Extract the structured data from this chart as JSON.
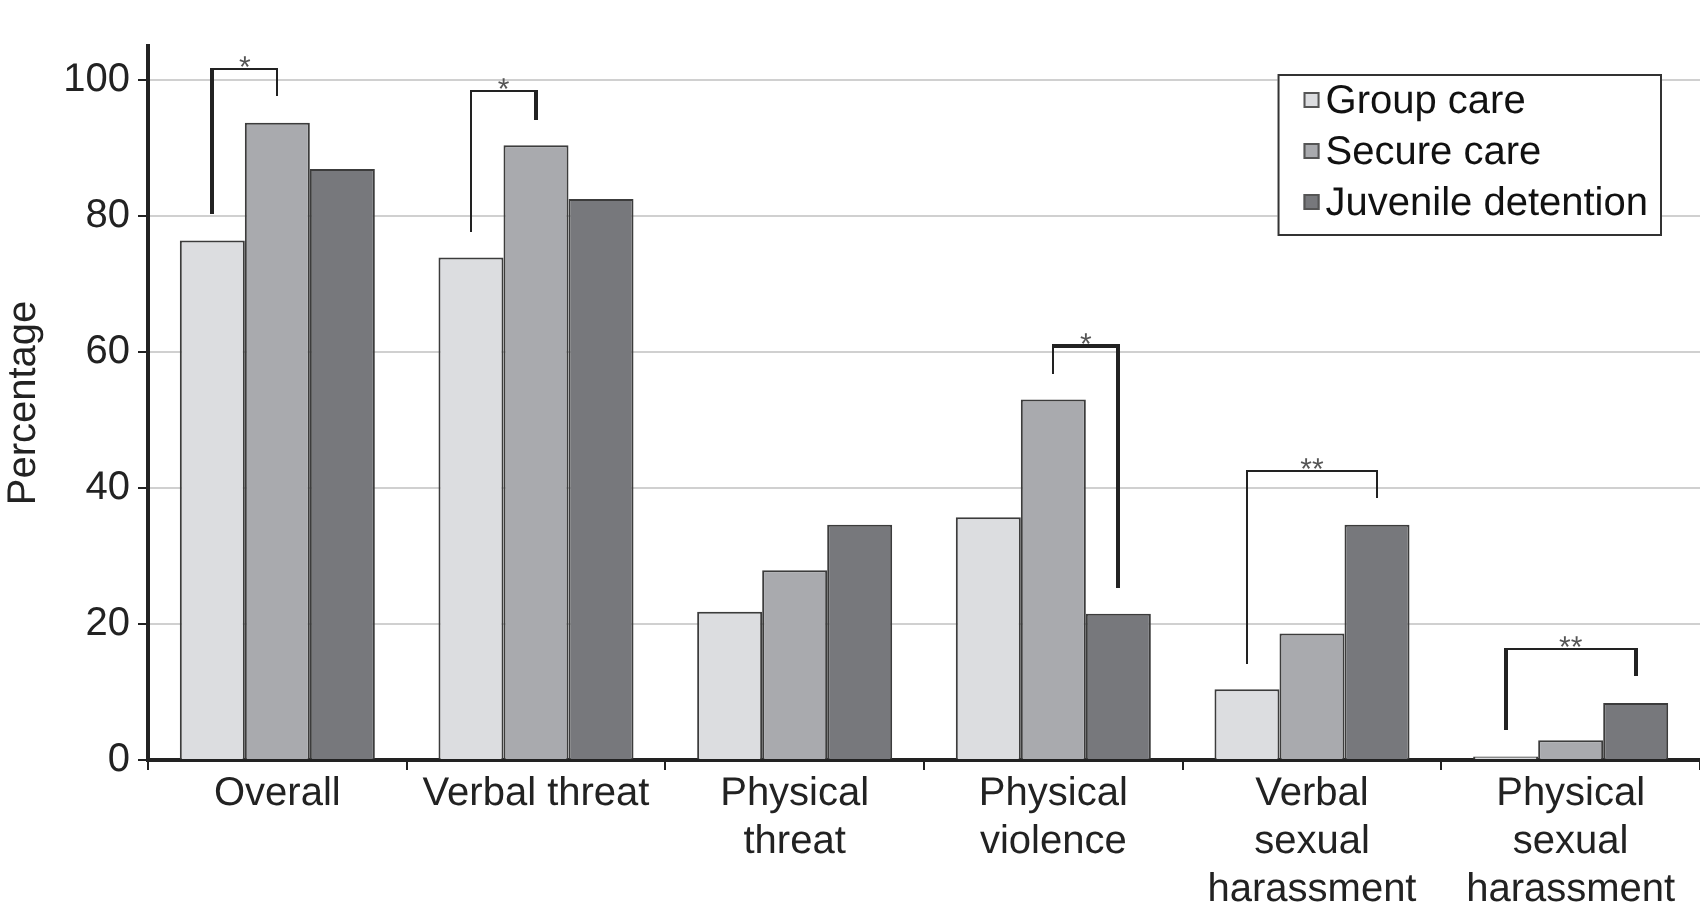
{
  "chart_data": {
    "type": "bar",
    "ylabel": "Percentage",
    "categories": [
      "Overall",
      "Verbal threat",
      "Physical threat",
      "Physical violence",
      "Verbal sexual harassment",
      "Physical sexual harassment"
    ],
    "series": [
      {
        "name": "Group care",
        "color": "#dcdde0",
        "values": [
          76.4,
          73.9,
          21.8,
          35.7,
          10.4,
          0.5
        ]
      },
      {
        "name": "Secure care",
        "color": "#a9aaae",
        "values": [
          93.7,
          90.4,
          27.9,
          53,
          18.6,
          2.9
        ]
      },
      {
        "name": "Juvenile detention",
        "color": "#77787c",
        "values": [
          86.9,
          82.5,
          34.6,
          21.5,
          34.6,
          8.4
        ]
      }
    ],
    "ylim": [
      0,
      105
    ],
    "yticks": [
      0,
      20,
      40,
      60,
      80,
      100
    ],
    "grid": "y",
    "legend": "top right",
    "annotations": [
      "*",
      "*",
      "*",
      "**",
      "**"
    ]
  }
}
